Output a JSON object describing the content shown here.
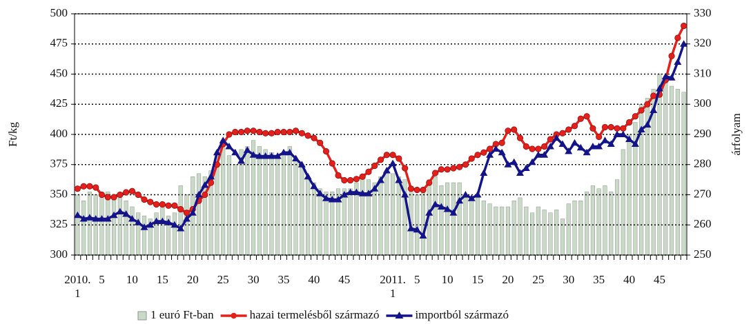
{
  "chart_data": {
    "type": "bar-line",
    "y_label": "Ft/kg",
    "y2_label": "árfolyam",
    "categories": [
      "2010. 1",
      null,
      null,
      null,
      "5",
      null,
      null,
      null,
      null,
      "10",
      null,
      null,
      null,
      null,
      "15",
      null,
      null,
      null,
      null,
      "20",
      null,
      null,
      null,
      null,
      "25",
      null,
      null,
      null,
      null,
      "30",
      null,
      null,
      null,
      null,
      "35",
      null,
      null,
      null,
      null,
      "40",
      null,
      null,
      null,
      null,
      "45",
      null,
      null,
      null,
      null,
      null,
      null,
      null,
      "2011. 1",
      null,
      null,
      null,
      "5",
      null,
      null,
      null,
      null,
      "10",
      null,
      null,
      null,
      null,
      "15",
      null,
      null,
      null,
      null,
      "20",
      null,
      null,
      null,
      null,
      "25",
      null,
      null,
      null,
      null,
      "30",
      null,
      null,
      null,
      null,
      "35",
      null,
      null,
      null,
      null,
      "40",
      null,
      null,
      null,
      null,
      "45",
      null,
      null,
      null,
      null
    ],
    "ylim": [
      300,
      500
    ],
    "yticks": [
      300,
      325,
      350,
      375,
      400,
      425,
      450,
      475,
      500
    ],
    "y2lim": [
      250,
      330
    ],
    "y2ticks": [
      250,
      260,
      270,
      280,
      290,
      300,
      310,
      320,
      330
    ],
    "grid": true,
    "legend": "bottom",
    "series": [
      {
        "name": "1 euró Ft-ban",
        "kind": "bar",
        "axis": "y2",
        "color": "#cbd9c9",
        "values": [
          270,
          268,
          271,
          270,
          270,
          271,
          270,
          269,
          268,
          266,
          264,
          263,
          262,
          264,
          266,
          263,
          264,
          273,
          270,
          276,
          277,
          276,
          278,
          284,
          288,
          283,
          280,
          285,
          286,
          288,
          286,
          285,
          284,
          283,
          284,
          286,
          282,
          279,
          276,
          274,
          272,
          271,
          271,
          272,
          272,
          272,
          274,
          276,
          275,
          274,
          276,
          278,
          277,
          276,
          275,
          272,
          270,
          272,
          275,
          276,
          273,
          274,
          274,
          274,
          269,
          268,
          269,
          268,
          267,
          266,
          266,
          266,
          268,
          269,
          266,
          264,
          266,
          265,
          264,
          265,
          262,
          267,
          268,
          268,
          271,
          273,
          272,
          273,
          271,
          275,
          285,
          290,
          294,
          300,
          302,
          305,
          310,
          308,
          306,
          305,
          304
        ]
      },
      {
        "name": "hazai termelésből származó",
        "kind": "line",
        "marker": "circle",
        "color": "#e3201b",
        "values": [
          355,
          357,
          357,
          356,
          350,
          348,
          348,
          350,
          352,
          353,
          350,
          346,
          344,
          342,
          342,
          341,
          341,
          338,
          335,
          338,
          345,
          350,
          360,
          375,
          392,
          400,
          402,
          402,
          403,
          403,
          402,
          401,
          401,
          402,
          402,
          402,
          403,
          401,
          399,
          397,
          393,
          386,
          376,
          366,
          362,
          362,
          363,
          365,
          369,
          374,
          379,
          383,
          383,
          380,
          372,
          355,
          354,
          354,
          360,
          368,
          371,
          371,
          372,
          373,
          375,
          380,
          383,
          385,
          388,
          392,
          393,
          403,
          404,
          397,
          390,
          388,
          388,
          390,
          396,
          400,
          401,
          404,
          407,
          413,
          415,
          405,
          398,
          406,
          406,
          405,
          405,
          410,
          415,
          420,
          425,
          432,
          433,
          445,
          465,
          480,
          490
        ]
      },
      {
        "name": "importból származó",
        "kind": "line",
        "marker": "triangle",
        "color": "#14148a",
        "values": [
          333,
          330,
          331,
          330,
          330,
          330,
          333,
          336,
          334,
          330,
          327,
          323,
          325,
          328,
          328,
          327,
          325,
          322,
          330,
          335,
          350,
          358,
          365,
          385,
          395,
          390,
          385,
          378,
          387,
          383,
          382,
          382,
          382,
          382,
          385,
          385,
          380,
          375,
          365,
          357,
          351,
          347,
          346,
          346,
          350,
          352,
          352,
          351,
          351,
          355,
          362,
          370,
          376,
          362,
          350,
          322,
          321,
          316,
          335,
          342,
          340,
          338,
          335,
          345,
          350,
          347,
          350,
          368,
          383,
          388,
          385,
          375,
          377,
          368,
          372,
          377,
          383,
          383,
          390,
          397,
          392,
          386,
          393,
          389,
          385,
          390,
          390,
          395,
          392,
          400,
          400,
          396,
          392,
          404,
          408,
          420,
          438,
          448,
          447,
          460,
          475
        ]
      }
    ]
  }
}
